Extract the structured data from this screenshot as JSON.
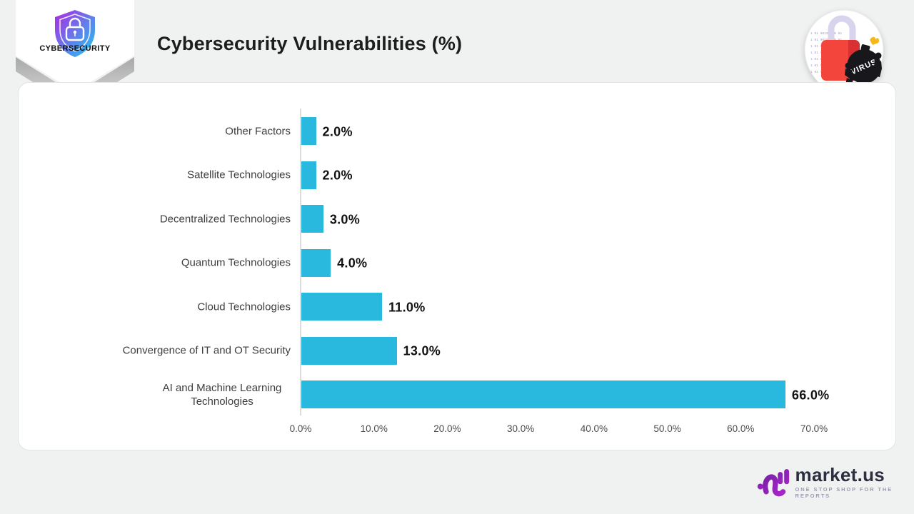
{
  "badge": {
    "label": "CYBERSECURITY"
  },
  "title": "Cybersecurity Vulnerabilities (%)",
  "pin": {
    "virus_label": "VIRUS",
    "binary_line": "1 01 00101 10 01"
  },
  "chart_data": {
    "type": "bar",
    "orientation": "horizontal",
    "title": "Cybersecurity Vulnerabilities (%)",
    "categories": [
      "Other Factors",
      "Satellite Technologies",
      "Decentralized Technologies",
      "Quantum Technologies",
      "Cloud Technologies",
      "Convergence of IT and OT Security",
      "AI and Machine Learning Technologies"
    ],
    "values": [
      2.0,
      2.0,
      3.0,
      4.0,
      11.0,
      13.0,
      66.0
    ],
    "value_labels": [
      "2.0%",
      "2.0%",
      "3.0%",
      "4.0%",
      "11.0%",
      "13.0%",
      "66.0%"
    ],
    "x_ticks": [
      "0.0%",
      "10.0%",
      "20.0%",
      "30.0%",
      "40.0%",
      "50.0%",
      "60.0%",
      "70.0%"
    ],
    "xlim": [
      0,
      70
    ],
    "bar_color": "#29B8DE",
    "grid": false,
    "legend": "none",
    "xlabel": "",
    "ylabel": ""
  },
  "footer": {
    "brand": "market.us",
    "tagline": "ONE STOP SHOP FOR THE REPORTS"
  },
  "colors": {
    "background": "#F0F1F1",
    "card": "#FFFFFF",
    "bar": "#29B8DE",
    "title_text": "#1D1D1D",
    "label_text": "#3D3D3D",
    "value_text": "#121212",
    "tick_text": "#4A4A4A",
    "axis_line": "#DCDCDC"
  }
}
